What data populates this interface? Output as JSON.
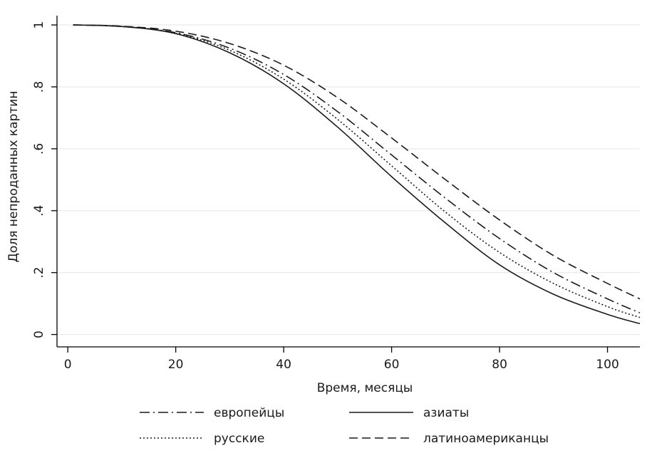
{
  "chart_data": {
    "type": "line",
    "xlabel": "Время, месяцы",
    "ylabel": "Доля непроданных картин",
    "xlim": [
      -2,
      106
    ],
    "ylim": [
      -0.04,
      1.03
    ],
    "xticks": [
      {
        "value": 0,
        "label": "0"
      },
      {
        "value": 20,
        "label": "20"
      },
      {
        "value": 40,
        "label": "40"
      },
      {
        "value": 60,
        "label": "60"
      },
      {
        "value": 80,
        "label": "80"
      },
      {
        "value": 100,
        "label": "100"
      }
    ],
    "yticks": [
      {
        "value": 0,
        "label": "0"
      },
      {
        "value": 0.2,
        "label": ".2"
      },
      {
        "value": 0.4,
        "label": ".4"
      },
      {
        "value": 0.6,
        "label": ".6"
      },
      {
        "value": 0.8,
        "label": ".8"
      },
      {
        "value": 1,
        "label": "1"
      }
    ],
    "grid": "horizontal",
    "legend_position": "bottom",
    "x": [
      1,
      10,
      20,
      30,
      40,
      50,
      60,
      70,
      80,
      90,
      100,
      106
    ],
    "series": [
      {
        "name": "европейцы",
        "style": "dash-dot",
        "values": [
          1.0,
          0.995,
          0.975,
          0.925,
          0.84,
          0.72,
          0.58,
          0.44,
          0.31,
          0.2,
          0.115,
          0.07
        ]
      },
      {
        "name": "азиаты",
        "style": "solid",
        "values": [
          1.0,
          0.995,
          0.972,
          0.91,
          0.81,
          0.67,
          0.51,
          0.36,
          0.225,
          0.13,
          0.065,
          0.035
        ]
      },
      {
        "name": "русские",
        "style": "dotted",
        "values": [
          1.0,
          0.995,
          0.973,
          0.918,
          0.825,
          0.695,
          0.545,
          0.395,
          0.265,
          0.165,
          0.09,
          0.055
        ]
      },
      {
        "name": "латиноамериканцы",
        "style": "dashed",
        "values": [
          1.0,
          0.996,
          0.98,
          0.94,
          0.87,
          0.765,
          0.635,
          0.5,
          0.37,
          0.255,
          0.165,
          0.115
        ]
      }
    ]
  }
}
